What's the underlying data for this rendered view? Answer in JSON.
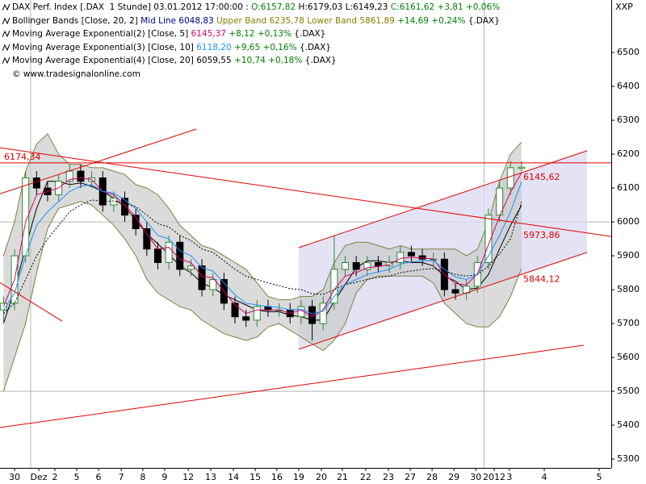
{
  "chart_data": {
    "type": "candlestick",
    "corner_label": "XXP",
    "header": [
      [
        {
          "text": "DAX Perf. Index [.DAX  1 Stunde] 03.01.2012 17:00:00 : ",
          "color": "#000000"
        },
        {
          "text": "O:6157,82",
          "color": "#008000"
        },
        {
          "text": " H:6179,03 L:6149,23 ",
          "color": "#000000"
        },
        {
          "text": "C:6161,62 +3,81 +0,06%",
          "color": "#008000"
        }
      ],
      [
        {
          "text": "Bollinger Bands [Close, 20, 2] ",
          "color": "#000000"
        },
        {
          "text": "Mid Line 6048,83",
          "color": "#00008b"
        },
        {
          "text": " Upper Band 6235,78 Lower Band 5861,89",
          "color": "#808000"
        },
        {
          "text": " +14,69 +0,24%",
          "color": "#008000"
        },
        {
          "text": " {.DAX}",
          "color": "#000000"
        }
      ],
      [
        {
          "text": "Moving Average Exponential(2) [Close, 5] ",
          "color": "#000000"
        },
        {
          "text": "6145,37",
          "color": "#d6006e"
        },
        {
          "text": " +8,12 +0,13%",
          "color": "#008000"
        },
        {
          "text": " {.DAX}",
          "color": "#000000"
        }
      ],
      [
        {
          "text": "Moving Average Exponential(3) [Close, 10] ",
          "color": "#000000"
        },
        {
          "text": "6118,20",
          "color": "#1e90ff"
        },
        {
          "text": " +9,65 +0,16%",
          "color": "#008000"
        },
        {
          "text": " {.DAX}",
          "color": "#000000"
        }
      ],
      [
        {
          "text": "Moving Average Exponential(4) [Close, 20] ",
          "color": "#000000"
        },
        {
          "text": "6059,55",
          "color": "#000000"
        },
        {
          "text": " +10,74 +0,18%",
          "color": "#008000"
        },
        {
          "text": " {.DAX}",
          "color": "#000000"
        }
      ],
      [
        {
          "text": "© www.tradesignalonline.com",
          "color": "#000000"
        }
      ]
    ],
    "xlim": [
      -0.66,
      27.07
    ],
    "ylim": [
      5274,
      6655
    ],
    "yticks": [
      5300,
      5400,
      5500,
      5600,
      5700,
      5800,
      5900,
      6000,
      6100,
      6200,
      6300,
      6400,
      6500
    ],
    "xticks": [
      {
        "value": 0,
        "label": "30"
      },
      {
        "value": 1.1,
        "label": "Dez"
      },
      {
        "value": 1.83,
        "label": "2"
      },
      {
        "value": 2.82,
        "label": "5"
      },
      {
        "value": 3.81,
        "label": "6"
      },
      {
        "value": 4.84,
        "label": "7"
      },
      {
        "value": 5.82,
        "label": "8"
      },
      {
        "value": 6.81,
        "label": "9"
      },
      {
        "value": 7.88,
        "label": "12"
      },
      {
        "value": 8.9,
        "label": "13"
      },
      {
        "value": 9.93,
        "label": "14"
      },
      {
        "value": 10.92,
        "label": "15"
      },
      {
        "value": 11.9,
        "label": "16"
      },
      {
        "value": 12.89,
        "label": "19"
      },
      {
        "value": 13.92,
        "label": "20"
      },
      {
        "value": 14.87,
        "label": "21"
      },
      {
        "value": 15.93,
        "label": "22"
      },
      {
        "value": 16.96,
        "label": "23"
      },
      {
        "value": 17.95,
        "label": "27"
      },
      {
        "value": 18.94,
        "label": "28"
      },
      {
        "value": 19.93,
        "label": "29"
      },
      {
        "value": 20.92,
        "label": "30"
      },
      {
        "value": 21.76,
        "label": "2012"
      },
      {
        "value": 22.45,
        "label": "3"
      },
      {
        "value": 24.03,
        "label": "4"
      },
      {
        "value": 26.52,
        "label": "5"
      }
    ],
    "grid_y": [
      5500,
      6000
    ],
    "grid_x": [
      0.73,
      21.3
    ],
    "up_color": "#2e8b2e",
    "down_color": "#000000",
    "x": [
      -0.5,
      0,
      0.5,
      1,
      1.5,
      2,
      2.5,
      3,
      3.5,
      4,
      4.5,
      5,
      5.5,
      6,
      6.5,
      7,
      7.5,
      8,
      8.5,
      9,
      9.5,
      10,
      10.5,
      11,
      11.5,
      12,
      12.5,
      13,
      13.5,
      14,
      14.5,
      15,
      15.5,
      16,
      16.5,
      17,
      17.5,
      18,
      18.5,
      19,
      19.5,
      20,
      20.5,
      21,
      21.5,
      22,
      22.5,
      23
    ],
    "open": [
      5740,
      5760,
      5900,
      6130,
      6100,
      6080,
      6120,
      6150,
      6120,
      6130,
      6050,
      6070,
      6020,
      5980,
      5920,
      5880,
      5940,
      5860,
      5870,
      5800,
      5830,
      5760,
      5720,
      5710,
      5750,
      5740,
      5740,
      5720,
      5750,
      5700,
      5760,
      5860,
      5880,
      5860,
      5880,
      5870,
      5880,
      5910,
      5900,
      5890,
      5890,
      5800,
      5790,
      5810,
      5880,
      6020,
      6100,
      6157.82
    ],
    "high": [
      5780,
      5920,
      6150,
      6150,
      6120,
      6140,
      6170,
      6170,
      6150,
      6150,
      6090,
      6090,
      6040,
      6000,
      5940,
      5960,
      5960,
      5890,
      5890,
      5850,
      5850,
      5780,
      5740,
      5770,
      5770,
      5760,
      5760,
      5770,
      5770,
      5780,
      5960,
      5900,
      5900,
      5900,
      5900,
      5900,
      5930,
      5930,
      5920,
      5910,
      5910,
      5820,
      5830,
      5900,
      6040,
      6120,
      6180,
      6179.03
    ],
    "low": [
      5700,
      5740,
      5880,
      6080,
      6060,
      6060,
      6100,
      6100,
      6100,
      6030,
      6030,
      6000,
      5960,
      5900,
      5860,
      5860,
      5840,
      5840,
      5780,
      5780,
      5740,
      5700,
      5690,
      5690,
      5720,
      5720,
      5700,
      5700,
      5650,
      5680,
      5740,
      5840,
      5840,
      5840,
      5850,
      5850,
      5860,
      5880,
      5870,
      5870,
      5780,
      5770,
      5770,
      5790,
      5860,
      6000,
      6080,
      6149.23
    ],
    "close": [
      5760,
      5900,
      6130,
      6100,
      6080,
      6120,
      6150,
      6120,
      6130,
      6050,
      6070,
      6020,
      5980,
      5920,
      5880,
      5940,
      5860,
      5870,
      5800,
      5830,
      5760,
      5720,
      5710,
      5750,
      5740,
      5740,
      5720,
      5750,
      5700,
      5760,
      5860,
      5880,
      5860,
      5880,
      5870,
      5880,
      5910,
      5900,
      5890,
      5890,
      5800,
      5790,
      5810,
      5880,
      6020,
      6100,
      6160,
      6161.62
    ],
    "bands": {
      "line_color": "#808040",
      "fill": "#c8c8c8",
      "mid_color": "#000000",
      "upper": [
        5900,
        6000,
        6150,
        6230,
        6260,
        6200,
        6170,
        6170,
        6160,
        6160,
        6150,
        6140,
        6110,
        6100,
        6080,
        6040,
        5990,
        5960,
        5930,
        5920,
        5900,
        5880,
        5860,
        5820,
        5780,
        5770,
        5770,
        5780,
        5780,
        5800,
        5880,
        5930,
        5940,
        5940,
        5930,
        5920,
        5930,
        5920,
        5920,
        5920,
        5920,
        5920,
        5900,
        5920,
        6000,
        6120,
        6200,
        6235.78
      ],
      "lower": [
        5500,
        5600,
        5700,
        5850,
        5980,
        6040,
        6050,
        6060,
        6050,
        6020,
        5990,
        5950,
        5900,
        5830,
        5790,
        5770,
        5750,
        5740,
        5710,
        5690,
        5670,
        5660,
        5650,
        5660,
        5690,
        5700,
        5680,
        5660,
        5640,
        5620,
        5650,
        5700,
        5790,
        5830,
        5840,
        5840,
        5840,
        5840,
        5840,
        5820,
        5760,
        5730,
        5700,
        5690,
        5690,
        5720,
        5780,
        5861.89
      ],
      "mid": [
        5700,
        5800,
        5925,
        6040,
        6120,
        6120,
        6110,
        6115,
        6105,
        6090,
        6070,
        6045,
        6005,
        5965,
        5935,
        5905,
        5870,
        5850,
        5820,
        5805,
        5785,
        5770,
        5755,
        5740,
        5735,
        5735,
        5725,
        5720,
        5710,
        5710,
        5765,
        5815,
        5865,
        5885,
        5885,
        5880,
        5885,
        5880,
        5880,
        5870,
        5840,
        5825,
        5800,
        5805,
        5845,
        5920,
        5990,
        6048.83
      ]
    },
    "lines": [
      {
        "color": "#d6006e",
        "dash": false,
        "values": [
          5750,
          5830,
          6000,
          6080,
          6090,
          6100,
          6125,
          6130,
          6125,
          6090,
          6080,
          6050,
          6015,
          5965,
          5920,
          5925,
          5890,
          5880,
          5840,
          5835,
          5795,
          5755,
          5730,
          5740,
          5740,
          5740,
          5730,
          5740,
          5720,
          5740,
          5800,
          5840,
          5850,
          5865,
          5868,
          5874,
          5892,
          5896,
          5893,
          5891,
          5845,
          5818,
          5814,
          5847,
          5933,
          6016,
          6088,
          6145.37
        ]
      },
      {
        "color": "#1e90ff",
        "dash": false,
        "values": [
          5740,
          5790,
          5900,
          5990,
          6030,
          6060,
          6090,
          6105,
          6110,
          6090,
          6085,
          6065,
          6040,
          6000,
          5960,
          5950,
          5915,
          5900,
          5865,
          5855,
          5820,
          5785,
          5760,
          5755,
          5750,
          5748,
          5740,
          5743,
          5728,
          5737,
          5780,
          5815,
          5830,
          5845,
          5852,
          5860,
          5875,
          5882,
          5885,
          5886,
          5860,
          5838,
          5830,
          5845,
          5900,
          5960,
          6030,
          6118.2
        ]
      },
      {
        "color": "#000000",
        "dash": true,
        "values": [
          5730,
          5760,
          5830,
          5900,
          5950,
          5990,
          6030,
          6050,
          6065,
          6060,
          6062,
          6055,
          6045,
          6020,
          5995,
          5985,
          5960,
          5945,
          5920,
          5910,
          5885,
          5860,
          5840,
          5830,
          5820,
          5812,
          5803,
          5800,
          5788,
          5786,
          5800,
          5815,
          5822,
          5830,
          5836,
          5840,
          5850,
          5855,
          5860,
          5862,
          5855,
          5845,
          5840,
          5845,
          5870,
          5905,
          5950,
          6059.55
        ]
      }
    ],
    "channel": {
      "fill": "#dcdcf2",
      "x": [
        12.89,
        25.97
      ],
      "lower": [
        5624,
        5910
      ],
      "upper": [
        5924,
        6210
      ]
    },
    "trend_color": "#e00000",
    "trendlines": [
      {
        "x": [
          -0.66,
          8.24
        ],
        "y": [
          6083,
          6274
        ]
      },
      {
        "x": [
          -0.66,
          27.07
        ],
        "y": [
          6219,
          5957
        ]
      },
      {
        "x": [
          -0.66,
          27.07
        ],
        "y": [
          6174.34,
          6174.34
        ]
      },
      {
        "x": [
          -0.66,
          2.16
        ],
        "y": [
          5821,
          5707
        ]
      },
      {
        "x": [
          -0.66,
          25.82
        ],
        "y": [
          5393,
          5636
        ]
      },
      {
        "x": [
          12.89,
          25.97
        ],
        "y": [
          5624,
          5910
        ]
      },
      {
        "x": [
          12.89,
          25.97
        ],
        "y": [
          5924,
          6210
        ]
      }
    ],
    "price_labels": [
      {
        "value": 6174.34,
        "label": "6174,34",
        "anchor": "left"
      },
      {
        "value": 6145.62,
        "label": "6145,62",
        "anchor": "right"
      },
      {
        "value": 5973.86,
        "label": "5973,86",
        "anchor": "right"
      },
      {
        "value": 5844.12,
        "label": "5844,12",
        "anchor": "right"
      }
    ]
  }
}
